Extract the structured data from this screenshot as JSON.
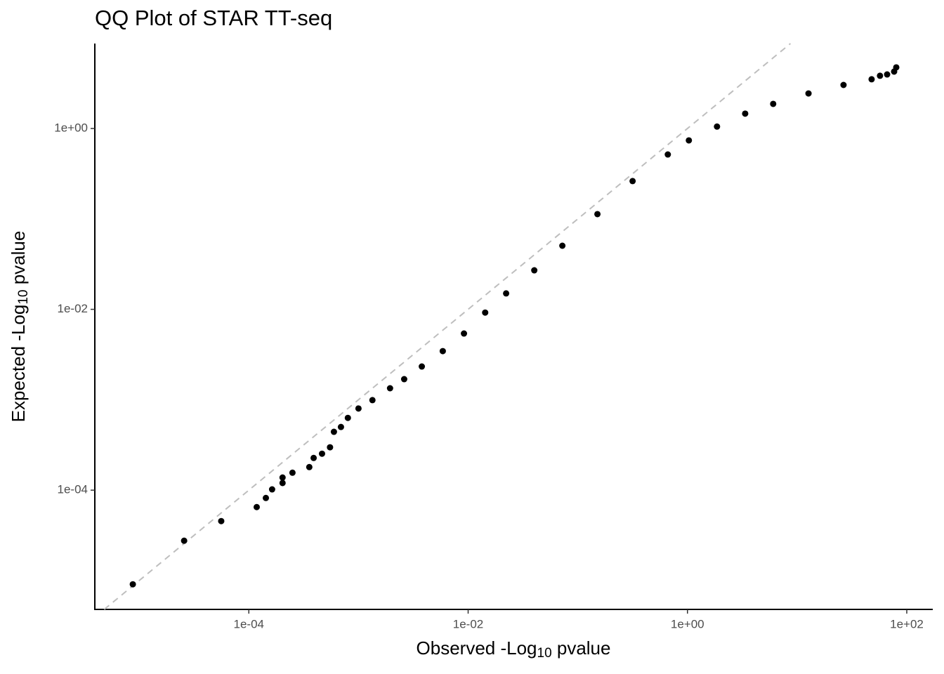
{
  "chart_data": {
    "type": "scatter",
    "title": "QQ Plot of STAR TT-seq",
    "xlabel": [
      "Observed -Log",
      "10",
      " pvalue"
    ],
    "ylabel": [
      "Expected -Log",
      "10",
      " pvalue"
    ],
    "log_x": true,
    "log_y": true,
    "color": "#000000",
    "reference_line_color": "#bebebe",
    "xlim": [
      3.94e-06,
      172.6
    ],
    "ylim": [
      4.8e-06,
      8.7
    ],
    "xticks": [
      {
        "value": 0.0001,
        "label": "1e-04"
      },
      {
        "value": 0.01,
        "label": "1e-02"
      },
      {
        "value": 1,
        "label": "1e+00"
      },
      {
        "value": 100,
        "label": "1e+02"
      }
    ],
    "yticks": [
      {
        "value": 0.0001,
        "label": "1e-04"
      },
      {
        "value": 0.01,
        "label": "1e-02"
      },
      {
        "value": 1,
        "label": "1e+00"
      }
    ],
    "x": [
      8.75e-06,
      2.57e-05,
      5.6e-05,
      0.000118,
      0.000143,
      0.000163,
      0.000203,
      0.000203,
      0.00025,
      0.000356,
      0.00039,
      0.000465,
      0.00055,
      0.000597,
      0.000692,
      0.0008,
      0.001,
      0.00134,
      0.00194,
      0.00261,
      0.00378,
      0.00587,
      0.00916,
      0.0143,
      0.0222,
      0.0401,
      0.0723,
      0.151,
      0.316,
      0.662,
      1.03,
      1.86,
      3.36,
      6.05,
      12.7,
      26.5,
      47.8,
      57.0,
      66.2,
      76.7,
      80.2
    ],
    "values": [
      9.1e-06,
      2.76e-05,
      4.55e-05,
      6.5e-05,
      8.2e-05,
      0.000102,
      0.00012,
      0.000138,
      0.000156,
      0.00018,
      0.000227,
      0.000253,
      0.000298,
      0.000442,
      0.0005,
      0.00063,
      0.0008,
      0.00099,
      0.00134,
      0.00169,
      0.00233,
      0.00345,
      0.0054,
      0.0092,
      0.015,
      0.027,
      0.0505,
      0.113,
      0.262,
      0.516,
      0.738,
      1.05,
      1.46,
      1.87,
      2.44,
      3.03,
      3.5,
      3.83,
      3.96,
      4.26,
      4.74
    ]
  }
}
